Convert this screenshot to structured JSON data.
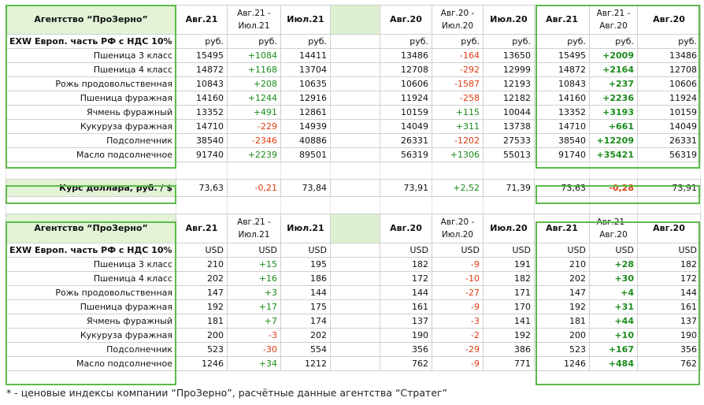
{
  "agency_title": "Агентство “ПроЗерно”",
  "subtitle": "EXW Европ. часть РФ с НДС 10%",
  "headers": [
    "Авг.21",
    "Авг.21 - Июл.21",
    "Июл.21",
    "Авг.20",
    "Авг.20 - Июл.20",
    "Июл.20",
    "Авг.21",
    "Авг.21 - Авг.20",
    "Авг.20"
  ],
  "header_lines": [
    [
      "Авг.21"
    ],
    [
      "Авг.21 -",
      "Июл.21"
    ],
    [
      "Июл.21"
    ],
    [
      "Авг.20"
    ],
    [
      "Авг.20 -",
      "Июл.20"
    ],
    [
      "Июл.20"
    ],
    [
      "Авг.21"
    ],
    [
      "Авг.21 -",
      "Авг.20"
    ],
    [
      "Авг.20"
    ]
  ],
  "commodities": [
    "Пшеница 3 класс",
    "Пшеница 4 класс",
    "Рожь продовольственная",
    "Пшеница фуражная",
    "Ячмень фуражный",
    "Кукуруза фуражная",
    "Подсолнечник",
    "Масло подсолнечное"
  ],
  "rub": {
    "unit": "руб.",
    "rows": [
      [
        "15495",
        "+1084",
        "14411",
        "13486",
        "-164",
        "13650",
        "15495",
        "+2009",
        "13486"
      ],
      [
        "14872",
        "+1168",
        "13704",
        "12708",
        "-292",
        "12999",
        "14872",
        "+2164",
        "12708"
      ],
      [
        "10843",
        "+208",
        "10635",
        "10606",
        "-1587",
        "12193",
        "10843",
        "+237",
        "10606"
      ],
      [
        "14160",
        "+1244",
        "12916",
        "11924",
        "-258",
        "12182",
        "14160",
        "+2236",
        "11924"
      ],
      [
        "13352",
        "+491",
        "12861",
        "10159",
        "+115",
        "10044",
        "13352",
        "+3193",
        "10159"
      ],
      [
        "14710",
        "-229",
        "14939",
        "14049",
        "+311",
        "13738",
        "14710",
        "+661",
        "14049"
      ],
      [
        "38540",
        "-2346",
        "40886",
        "26331",
        "-1202",
        "27533",
        "38540",
        "+12209",
        "26331"
      ],
      [
        "91740",
        "+2239",
        "89501",
        "56319",
        "+1306",
        "55013",
        "91740",
        "+35421",
        "56319"
      ]
    ]
  },
  "rate": {
    "label": "Курс доллара, руб. / $",
    "values": [
      "73,63",
      "-0,21",
      "73,84",
      "73,91",
      "+2,52",
      "71,39",
      "73,63",
      "-0,28",
      "73,91"
    ]
  },
  "usd": {
    "unit": "USD",
    "rows": [
      [
        "210",
        "+15",
        "195",
        "182",
        "-9",
        "191",
        "210",
        "+28",
        "182"
      ],
      [
        "202",
        "+16",
        "186",
        "172",
        "-10",
        "182",
        "202",
        "+30",
        "172"
      ],
      [
        "147",
        "+3",
        "144",
        "144",
        "-27",
        "171",
        "147",
        "+4",
        "144"
      ],
      [
        "192",
        "+17",
        "175",
        "161",
        "-9",
        "170",
        "192",
        "+31",
        "161"
      ],
      [
        "181",
        "+7",
        "174",
        "137",
        "-3",
        "141",
        "181",
        "+44",
        "137"
      ],
      [
        "200",
        "-3",
        "202",
        "190",
        "-2",
        "192",
        "200",
        "+10",
        "190"
      ],
      [
        "523",
        "-30",
        "554",
        "356",
        "-29",
        "386",
        "523",
        "+167",
        "356"
      ],
      [
        "1246",
        "+34",
        "1212",
        "762",
        "-9",
        "771",
        "1246",
        "+484",
        "762"
      ]
    ]
  },
  "footnote": "* - ценовые индексы компании “ПроЗерно”, расчётные данные агентства “Стратег”",
  "colors": {
    "positive": "#1a8a1a",
    "negative": "#e03a10",
    "frame": "#5cba4a",
    "title_bg": "#e2f3d6"
  }
}
